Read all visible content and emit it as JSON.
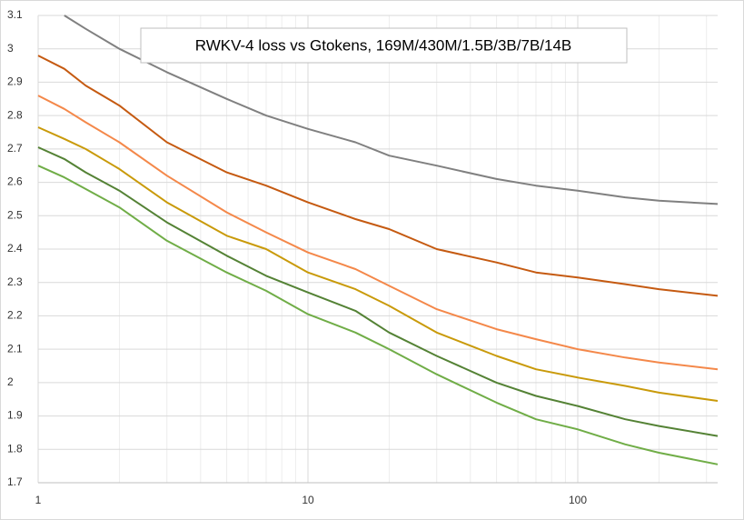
{
  "chart_data": {
    "type": "line",
    "title": "RWKV-4 loss vs Gtokens, 169M/430M/1.5B/3B/7B/14B",
    "x": [
      1,
      1.25,
      1.5,
      2,
      3,
      5,
      7,
      10,
      15,
      20,
      30,
      50,
      70,
      100,
      150,
      200,
      330
    ],
    "series": [
      {
        "color": "#808080",
        "values": [
          null,
          3.1,
          3.06,
          3.0,
          2.93,
          2.85,
          2.8,
          2.76,
          2.72,
          2.68,
          2.65,
          2.61,
          2.59,
          2.575,
          2.555,
          2.545,
          2.535
        ]
      },
      {
        "color": "#c55a11",
        "values": [
          2.98,
          2.94,
          2.89,
          2.83,
          2.72,
          2.63,
          2.59,
          2.54,
          2.49,
          2.46,
          2.4,
          2.36,
          2.33,
          2.315,
          2.295,
          2.28,
          2.26
        ]
      },
      {
        "color": "#f4884a",
        "values": [
          2.86,
          2.82,
          2.78,
          2.72,
          2.62,
          2.51,
          2.45,
          2.39,
          2.34,
          2.29,
          2.22,
          2.16,
          2.13,
          2.1,
          2.075,
          2.06,
          2.04
        ]
      },
      {
        "color": "#c99a0a",
        "values": [
          2.765,
          2.73,
          2.7,
          2.64,
          2.54,
          2.44,
          2.4,
          2.33,
          2.28,
          2.23,
          2.15,
          2.08,
          2.04,
          2.015,
          1.99,
          1.97,
          1.945
        ]
      },
      {
        "color": "#548235",
        "values": [
          2.705,
          2.67,
          2.63,
          2.575,
          2.48,
          2.38,
          2.32,
          2.27,
          2.215,
          2.15,
          2.08,
          2.0,
          1.96,
          1.93,
          1.89,
          1.87,
          1.84
        ]
      },
      {
        "color": "#70ad47",
        "values": [
          2.65,
          2.615,
          2.58,
          2.525,
          2.425,
          2.33,
          2.275,
          2.205,
          2.15,
          2.1,
          2.025,
          1.94,
          1.89,
          1.86,
          1.815,
          1.79,
          1.755
        ]
      }
    ],
    "xlim": [
      1,
      330
    ],
    "xticks": [
      1,
      10,
      100
    ],
    "log_x": true,
    "ylim": [
      1.7,
      3.1
    ],
    "yticks": [
      1.7,
      1.8,
      1.9,
      2,
      2.1,
      2.2,
      2.3,
      2.4,
      2.5,
      2.6,
      2.7,
      2.8,
      2.9,
      3,
      3.1
    ],
    "grid": true
  }
}
